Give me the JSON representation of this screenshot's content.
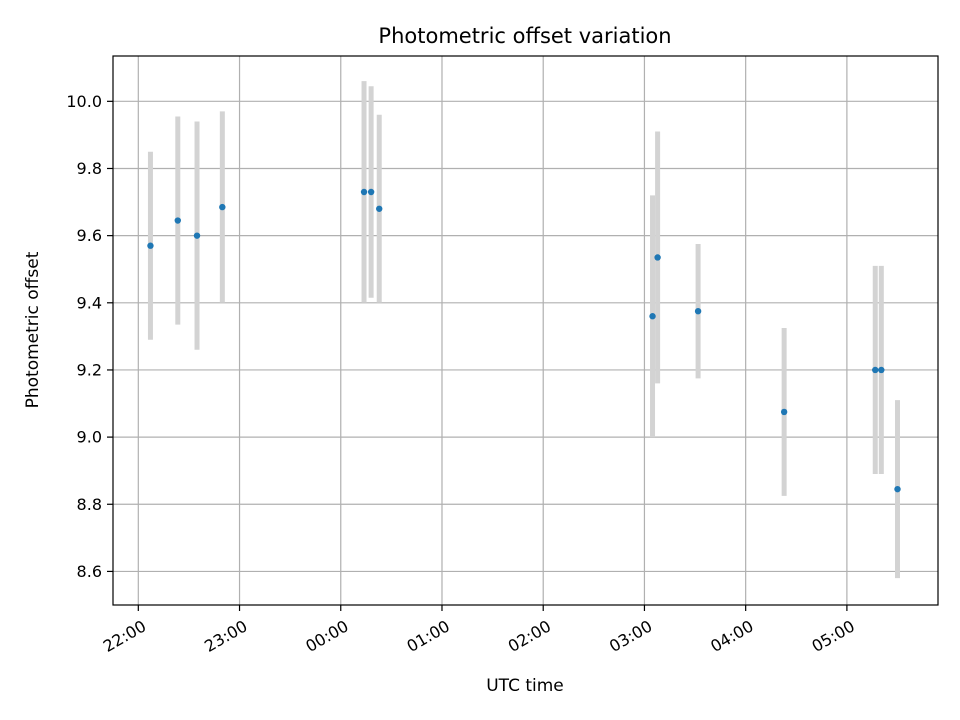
{
  "chart_data": {
    "type": "scatter",
    "title": "Photometric offset variation",
    "xlabel": "UTC time",
    "ylabel": "Photometric offset",
    "x_axis": {
      "unit": "hours since 22:00 UTC (continues past midnight)",
      "range": [
        -0.25,
        7.9
      ],
      "ticks": [
        {
          "value": 0,
          "label": "22:00"
        },
        {
          "value": 1,
          "label": "23:00"
        },
        {
          "value": 2,
          "label": "00:00"
        },
        {
          "value": 3,
          "label": "01:00"
        },
        {
          "value": 4,
          "label": "02:00"
        },
        {
          "value": 5,
          "label": "03:00"
        },
        {
          "value": 6,
          "label": "04:00"
        },
        {
          "value": 7,
          "label": "05:00"
        }
      ]
    },
    "y_axis": {
      "range": [
        8.5,
        10.135
      ],
      "ticks": [
        {
          "value": 8.6,
          "label": "8.6"
        },
        {
          "value": 8.8,
          "label": "8.8"
        },
        {
          "value": 9.0,
          "label": "9.0"
        },
        {
          "value": 9.2,
          "label": "9.2"
        },
        {
          "value": 9.4,
          "label": "9.4"
        },
        {
          "value": 9.6,
          "label": "9.6"
        },
        {
          "value": 9.8,
          "label": "9.8"
        },
        {
          "value": 10.0,
          "label": "10.0"
        }
      ]
    },
    "grid": true,
    "colors": {
      "point": "#1f77b4",
      "errorbar": "#d3d3d3"
    },
    "points": [
      {
        "x": 0.12,
        "y": 9.57,
        "err": 0.28
      },
      {
        "x": 0.39,
        "y": 9.645,
        "err": 0.31
      },
      {
        "x": 0.58,
        "y": 9.6,
        "err": 0.34
      },
      {
        "x": 0.83,
        "y": 9.685,
        "err": 0.285
      },
      {
        "x": 2.23,
        "y": 9.73,
        "err": 0.33
      },
      {
        "x": 2.3,
        "y": 9.73,
        "err": 0.315
      },
      {
        "x": 2.38,
        "y": 9.68,
        "err": 0.28
      },
      {
        "x": 5.08,
        "y": 9.36,
        "err": 0.36
      },
      {
        "x": 5.13,
        "y": 9.535,
        "err": 0.375
      },
      {
        "x": 5.53,
        "y": 9.375,
        "err": 0.2
      },
      {
        "x": 6.38,
        "y": 9.075,
        "err": 0.25
      },
      {
        "x": 7.28,
        "y": 9.2,
        "err": 0.31
      },
      {
        "x": 7.34,
        "y": 9.2,
        "err": 0.31
      },
      {
        "x": 7.5,
        "y": 8.845,
        "err": 0.265
      }
    ]
  }
}
